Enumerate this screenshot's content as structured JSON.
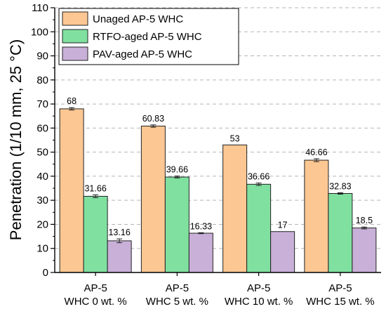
{
  "chart_data": {
    "type": "bar",
    "title": "",
    "xlabel": "",
    "ylabel": "Penetration (1/10 mm, 25 °C)",
    "ylim": [
      0,
      110
    ],
    "yticks": [
      0,
      10,
      20,
      30,
      40,
      50,
      60,
      70,
      80,
      90,
      100,
      110
    ],
    "grid": "horizontal dashed",
    "legend_position": "top-left",
    "categories": [
      [
        "AP-5",
        "WHC 0 wt. %"
      ],
      [
        "AP-5",
        "WHC 5 wt. %"
      ],
      [
        "AP-5",
        "WHC 10 wt. %"
      ],
      [
        "AP-5",
        "WHC 15 wt. %"
      ]
    ],
    "series": [
      {
        "name": "Unaged AP-5 WHC",
        "color": "#FCC792",
        "values": [
          68,
          60.83,
          53,
          46.66
        ],
        "labels": [
          "68",
          "60.83",
          "53",
          "46.66"
        ],
        "errors": [
          0.5,
          0.5,
          0,
          0.6
        ]
      },
      {
        "name": "RTFO-aged AP-5 WHC",
        "color": "#80E0A0",
        "values": [
          31.66,
          39.66,
          36.66,
          32.83
        ],
        "labels": [
          "31.66",
          "39.66",
          "36.66",
          "32.83"
        ],
        "errors": [
          0.6,
          0.4,
          0.5,
          0.3
        ]
      },
      {
        "name": "PAV-aged AP-5 WHC",
        "color": "#C8B0D8",
        "values": [
          13.16,
          16.33,
          17,
          18.5
        ],
        "labels": [
          "13.16",
          "16.33",
          "17",
          "18.5"
        ],
        "errors": [
          0.8,
          0.2,
          0,
          0.4
        ]
      }
    ]
  }
}
